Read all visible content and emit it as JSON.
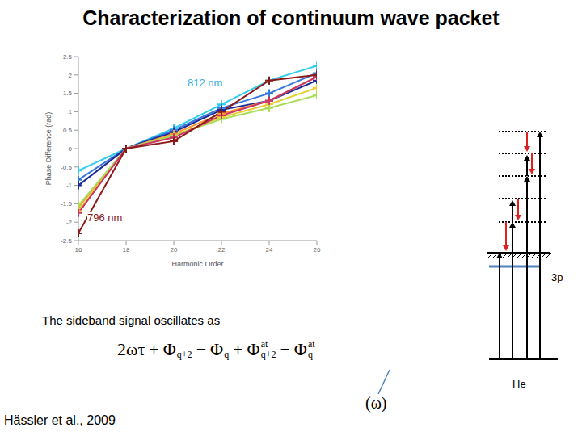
{
  "chart_data": {
    "type": "line",
    "x": [
      16,
      18,
      20,
      22,
      24,
      26
    ],
    "series": [
      {
        "color": "#33ccee",
        "values": [
          -0.6,
          0,
          0.55,
          1.2,
          1.85,
          2.25
        ]
      },
      {
        "color": "#3377dd",
        "values": [
          -0.85,
          0,
          0.5,
          1.1,
          1.5,
          2.05
        ]
      },
      {
        "color": "#1a2a99",
        "values": [
          -1.0,
          0,
          0.45,
          1.05,
          1.3,
          1.85
        ]
      },
      {
        "color": "#ff9933",
        "values": [
          -1.6,
          0,
          0.4,
          0.95,
          1.3,
          1.95
        ]
      },
      {
        "color": "#e6d033",
        "values": [
          -1.7,
          0,
          0.35,
          0.85,
          1.2,
          1.65
        ]
      },
      {
        "color": "#aadd55",
        "values": [
          -1.55,
          0,
          0.35,
          0.8,
          1.1,
          1.45
        ]
      },
      {
        "color": "#cc3366",
        "values": [
          -1.75,
          0,
          0.3,
          0.9,
          1.3,
          1.95
        ]
      },
      {
        "color": "#8b1a1a",
        "values": [
          -2.3,
          0,
          0.2,
          1.0,
          1.85,
          2.0
        ]
      }
    ],
    "xlim": [
      16,
      26
    ],
    "xticks": [
      16,
      18,
      20,
      22,
      24,
      26
    ],
    "ylim": [
      -2.5,
      2.5
    ],
    "yticks": [
      -2.5,
      -2,
      -1.5,
      -1,
      -0.5,
      0,
      0.5,
      1,
      1.5,
      2,
      2.5
    ],
    "x_label": "Harmonic Order",
    "y_label": "Phase Difference (rad)",
    "marker": "plus",
    "grid": false,
    "annotations": [
      {
        "text": "812 nm",
        "color": "#33aadd"
      },
      {
        "text": "796 nm",
        "color": "#8b1a1a"
      }
    ]
  },
  "slide": {
    "title": "Characterization of continuum wave packet",
    "text": "The sideband signal oscillates as",
    "formula": [
      {
        "symbol": "2ωτ"
      },
      {
        "sign": "+",
        "symbol": "Φ",
        "sub": "q+2"
      },
      {
        "sign": "−",
        "symbol": "Φ",
        "sub": "q"
      },
      {
        "sign": "+",
        "symbol": "Φ",
        "sup": "at",
        "sub": "q+2"
      },
      {
        "sign": "−",
        "symbol": "Φ",
        "sup": "at",
        "sub": "q"
      }
    ],
    "formula_note": "(ω)",
    "citation": "Hässler et al., 2009",
    "diagram": {
      "level": "3p",
      "atom": "He"
    }
  }
}
